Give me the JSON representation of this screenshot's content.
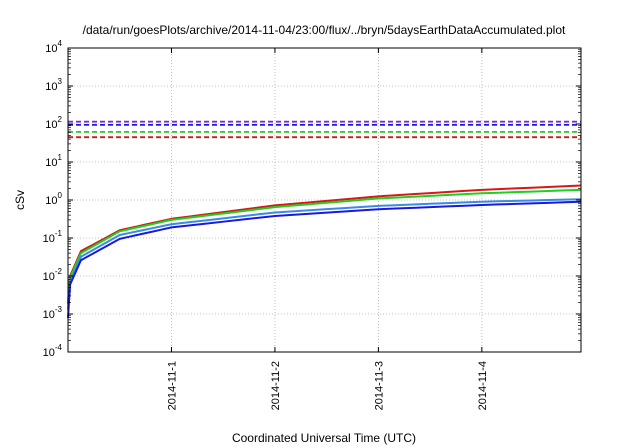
{
  "chart_data": {
    "type": "line",
    "title": "/data/run/goesPlots/archive/2014-11-04/23:00/flux/../bryn/5daysEarthDataAccumulated.plot",
    "xlabel": "Coordinated Universal Time (UTC)",
    "ylabel": "cSv",
    "y_scale": "log",
    "ylim": [
      0.0001,
      10000
    ],
    "xlim": [
      "2014-10-31T00:00",
      "2014-11-04T23:00"
    ],
    "y_ticks": [
      {
        "base": "10",
        "exp": "-4",
        "value": 0.0001
      },
      {
        "base": "10",
        "exp": "-3",
        "value": 0.001
      },
      {
        "base": "10",
        "exp": "-2",
        "value": 0.01
      },
      {
        "base": "10",
        "exp": "-1",
        "value": 0.1
      },
      {
        "base": "10",
        "exp": "0",
        "value": 1
      },
      {
        "base": "10",
        "exp": "1",
        "value": 10
      },
      {
        "base": "10",
        "exp": "2",
        "value": 100
      },
      {
        "base": "10",
        "exp": "3",
        "value": 1000
      },
      {
        "base": "10",
        "exp": "4",
        "value": 10000
      }
    ],
    "x_ticks": [
      {
        "label": "2014-11-1",
        "value": "2014-11-01T00:00"
      },
      {
        "label": "2014-11-2",
        "value": "2014-11-02T00:00"
      },
      {
        "label": "2014-11-3",
        "value": "2014-11-03T00:00"
      },
      {
        "label": "2014-11-4",
        "value": "2014-11-04T00:00"
      }
    ],
    "grid": true,
    "legend": "none",
    "thresholds": [
      {
        "color": "#7b2fd0",
        "value": 115,
        "style": "dashed"
      },
      {
        "color": "#1a1adf",
        "value": 95,
        "style": "dashed"
      },
      {
        "color": "#20d020",
        "value": 62,
        "style": "dashed"
      },
      {
        "color": "#d81818",
        "value": 45,
        "style": "dashed"
      }
    ],
    "series": [
      {
        "color": "#d81818",
        "x": [
          "2014-10-31T00:00",
          "2014-10-31T00:30",
          "2014-10-31T03:00",
          "2014-10-31T12:00",
          "2014-11-01T00:00",
          "2014-11-02T00:00",
          "2014-11-03T00:00",
          "2014-11-04T00:00",
          "2014-11-04T23:00"
        ],
        "y": [
          0.002,
          0.01,
          0.045,
          0.16,
          0.32,
          0.72,
          1.25,
          1.85,
          2.4
        ]
      },
      {
        "color": "#20d020",
        "x": [
          "2014-10-31T00:00",
          "2014-10-31T00:30",
          "2014-10-31T03:00",
          "2014-10-31T12:00",
          "2014-11-01T00:00",
          "2014-11-02T00:00",
          "2014-11-03T00:00",
          "2014-11-04T00:00",
          "2014-11-04T23:00"
        ],
        "y": [
          0.0018,
          0.009,
          0.04,
          0.15,
          0.3,
          0.65,
          1.1,
          1.5,
          1.85
        ]
      },
      {
        "color": "#3a8ae8",
        "x": [
          "2014-10-31T00:00",
          "2014-10-31T00:30",
          "2014-10-31T03:00",
          "2014-10-31T12:00",
          "2014-11-01T00:00",
          "2014-11-02T00:00",
          "2014-11-03T00:00",
          "2014-11-04T00:00",
          "2014-11-04T23:00"
        ],
        "y": [
          0.0013,
          0.007,
          0.032,
          0.12,
          0.23,
          0.47,
          0.7,
          0.9,
          1.05
        ]
      },
      {
        "color": "#1a1adf",
        "x": [
          "2014-10-31T00:00",
          "2014-10-31T00:30",
          "2014-10-31T03:00",
          "2014-10-31T12:00",
          "2014-11-01T00:00",
          "2014-11-02T00:00",
          "2014-11-03T00:00",
          "2014-11-04T00:00",
          "2014-11-04T23:00"
        ],
        "y": [
          0.0008,
          0.006,
          0.026,
          0.095,
          0.19,
          0.38,
          0.57,
          0.74,
          0.9
        ]
      }
    ]
  }
}
